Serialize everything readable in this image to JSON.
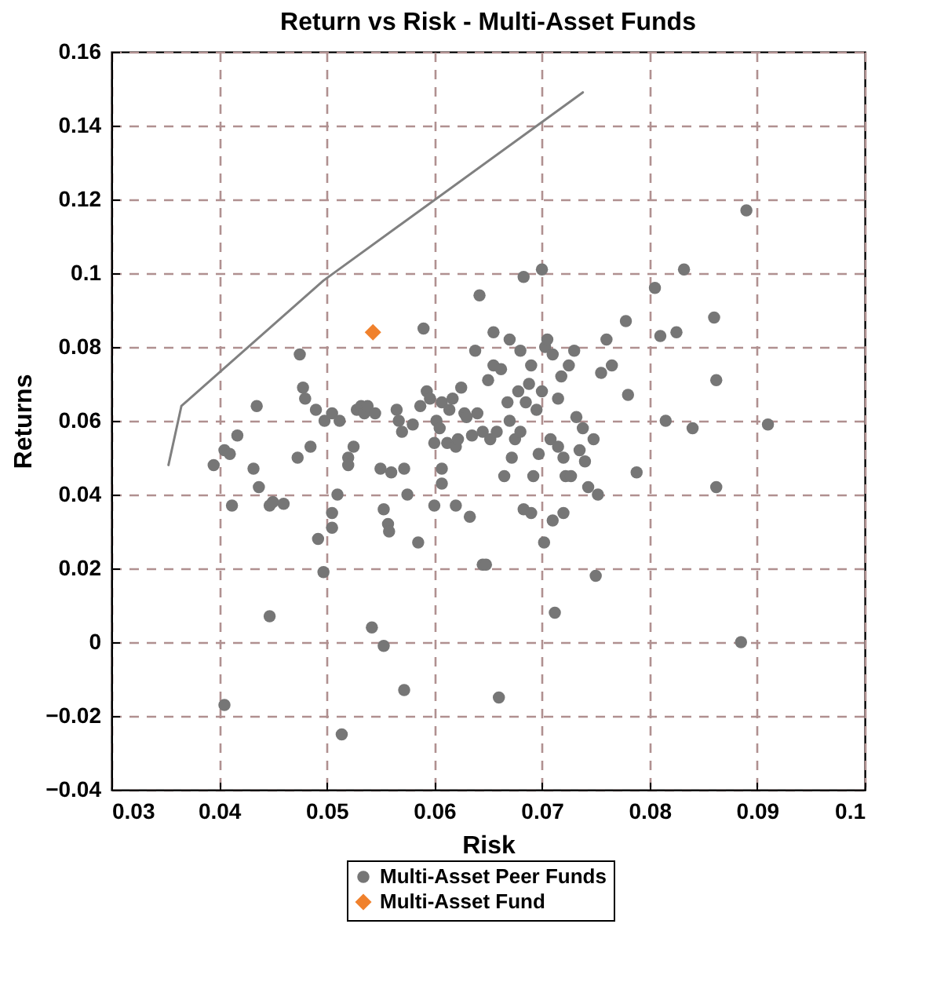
{
  "chart_data": {
    "type": "scatter",
    "title": "Return vs Risk - Multi-Asset Funds",
    "xlabel": "Risk",
    "ylabel": "Returns",
    "xlim": [
      0.03,
      0.1
    ],
    "ylim": [
      -0.04,
      0.16
    ],
    "xticks": [
      0.03,
      0.04,
      0.05,
      0.06,
      0.07,
      0.08,
      0.09,
      0.1
    ],
    "yticks": [
      -0.04,
      -0.02,
      0,
      0.02,
      0.04,
      0.06,
      0.08,
      0.1,
      0.12,
      0.14,
      0.16
    ],
    "grid": true,
    "legend": "bottom",
    "series": [
      {
        "type": "line",
        "color": "#808080",
        "marker": "none",
        "x": [
          0.0353,
          0.0365,
          0.0497,
          0.0738
        ],
        "values": [
          0.048,
          0.064,
          0.098,
          0.149
        ]
      },
      {
        "name": "Multi-Asset Peer Funds",
        "color": "#767676",
        "marker": "circle",
        "x": [
          0.0395,
          0.0405,
          0.041,
          0.0412,
          0.0417,
          0.0405,
          0.0435,
          0.0432,
          0.0437,
          0.0447,
          0.045,
          0.0447,
          0.046,
          0.0473,
          0.0475,
          0.0478,
          0.048,
          0.0485,
          0.049,
          0.0492,
          0.0497,
          0.0498,
          0.0505,
          0.0505,
          0.0505,
          0.051,
          0.0512,
          0.0514,
          0.052,
          0.052,
          0.0525,
          0.0528,
          0.0532,
          0.0535,
          0.0538,
          0.0542,
          0.0545,
          0.055,
          0.0553,
          0.0553,
          0.0557,
          0.0558,
          0.056,
          0.0565,
          0.0567,
          0.057,
          0.0572,
          0.0572,
          0.0575,
          0.058,
          0.0585,
          0.0587,
          0.059,
          0.0593,
          0.0596,
          0.06,
          0.06,
          0.0602,
          0.0605,
          0.0607,
          0.0607,
          0.0607,
          0.0612,
          0.0614,
          0.0617,
          0.062,
          0.062,
          0.0622,
          0.0625,
          0.0628,
          0.063,
          0.0633,
          0.0635,
          0.0638,
          0.064,
          0.0642,
          0.0645,
          0.0645,
          0.0648,
          0.065,
          0.0652,
          0.0655,
          0.0655,
          0.0658,
          0.066,
          0.0662,
          0.0665,
          0.0668,
          0.067,
          0.067,
          0.0672,
          0.0675,
          0.0678,
          0.068,
          0.068,
          0.0683,
          0.0683,
          0.0685,
          0.0688,
          0.069,
          0.069,
          0.0692,
          0.0695,
          0.0697,
          0.07,
          0.07,
          0.0702,
          0.0703,
          0.0705,
          0.0708,
          0.071,
          0.071,
          0.0712,
          0.0715,
          0.0715,
          0.0718,
          0.072,
          0.072,
          0.0722,
          0.0725,
          0.0727,
          0.073,
          0.0732,
          0.0735,
          0.0738,
          0.074,
          0.0743,
          0.0748,
          0.075,
          0.0752,
          0.0755,
          0.076,
          0.0765,
          0.0778,
          0.078,
          0.0788,
          0.0805,
          0.081,
          0.0815,
          0.0825,
          0.0832,
          0.084,
          0.086,
          0.0862,
          0.0862,
          0.0885,
          0.089,
          0.091
        ],
        "values": [
          0.048,
          0.052,
          0.051,
          0.037,
          0.056,
          -0.017,
          0.064,
          0.047,
          0.042,
          0.037,
          0.038,
          0.007,
          0.0375,
          0.05,
          0.078,
          0.069,
          0.066,
          0.053,
          0.063,
          0.028,
          0.019,
          0.06,
          0.062,
          0.035,
          0.031,
          0.04,
          0.06,
          -0.025,
          0.05,
          0.048,
          0.053,
          0.063,
          0.064,
          0.062,
          0.064,
          0.004,
          0.062,
          0.047,
          0.036,
          -0.001,
          0.032,
          0.03,
          0.046,
          0.063,
          0.06,
          0.057,
          0.047,
          -0.013,
          0.04,
          0.059,
          0.027,
          0.064,
          0.085,
          0.068,
          0.066,
          0.054,
          0.037,
          0.06,
          0.058,
          0.047,
          0.043,
          0.065,
          0.054,
          0.063,
          0.066,
          0.053,
          0.037,
          0.055,
          0.069,
          0.062,
          0.061,
          0.034,
          0.056,
          0.079,
          0.062,
          0.094,
          0.057,
          0.021,
          0.021,
          0.071,
          0.055,
          0.075,
          0.084,
          0.057,
          -0.015,
          0.074,
          0.045,
          0.065,
          0.06,
          0.082,
          0.05,
          0.055,
          0.068,
          0.079,
          0.057,
          0.036,
          0.099,
          0.065,
          0.07,
          0.035,
          0.075,
          0.045,
          0.063,
          0.051,
          0.101,
          0.068,
          0.027,
          0.08,
          0.082,
          0.055,
          0.078,
          0.033,
          0.008,
          0.066,
          0.053,
          0.072,
          0.05,
          0.035,
          0.045,
          0.075,
          0.045,
          0.079,
          0.061,
          0.052,
          0.058,
          0.049,
          0.042,
          0.055,
          0.018,
          0.04,
          0.073,
          0.082,
          0.075,
          0.087,
          0.067,
          0.046,
          0.096,
          0.083,
          0.06,
          0.084,
          0.101,
          0.058,
          0.088,
          0.071,
          0.042,
          0.0,
          0.117,
          0.059
        ]
      },
      {
        "name": "Multi-Asset Fund",
        "color": "#f0812c",
        "marker": "diamond",
        "x": [
          0.0543
        ],
        "values": [
          0.084
        ]
      }
    ]
  }
}
